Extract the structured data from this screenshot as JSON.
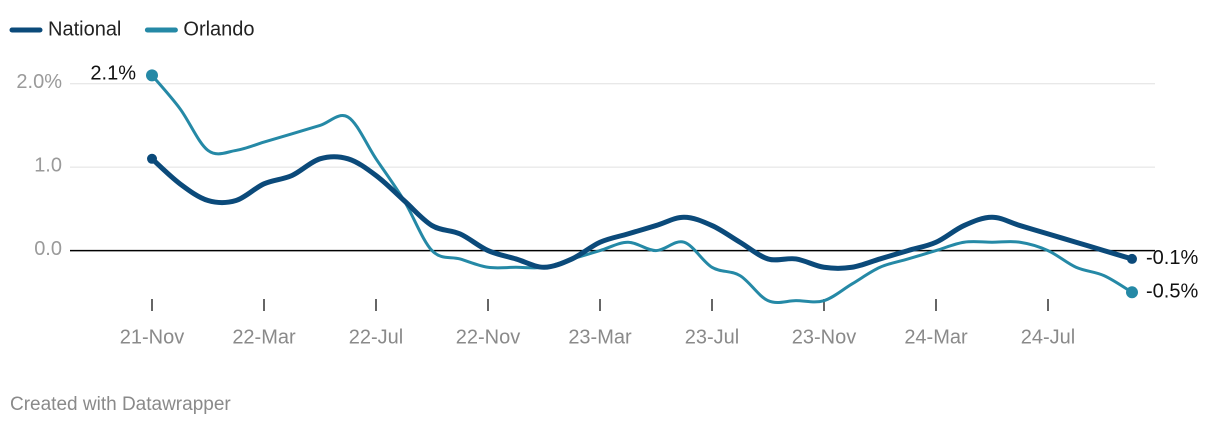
{
  "chart_data": {
    "type": "line",
    "categories": [
      "21-Nov",
      null,
      null,
      null,
      "22-Mar",
      null,
      null,
      null,
      "22-Jul",
      null,
      null,
      null,
      "22-Nov",
      null,
      null,
      null,
      "23-Mar",
      null,
      null,
      null,
      "23-Jul",
      null,
      null,
      null,
      "23-Nov",
      null,
      null,
      null,
      "24-Mar",
      null,
      null,
      null,
      "24-Jul",
      null,
      null,
      null
    ],
    "series": [
      {
        "name": "National",
        "color": "#0b4a7a",
        "values": [
          1.1,
          0.8,
          0.6,
          0.6,
          0.8,
          0.9,
          1.1,
          1.1,
          0.9,
          0.6,
          0.3,
          0.2,
          0.0,
          -0.1,
          -0.2,
          -0.1,
          0.1,
          0.2,
          0.3,
          0.4,
          0.3,
          0.1,
          -0.1,
          -0.1,
          -0.2,
          -0.2,
          -0.1,
          0.0,
          0.1,
          0.3,
          0.4,
          0.3,
          0.2,
          0.1,
          0.0,
          -0.1
        ],
        "value_labels": [
          null,
          null,
          null,
          null,
          null,
          null,
          null,
          null,
          null,
          null,
          null,
          null,
          null,
          null,
          null,
          null,
          null,
          null,
          null,
          null,
          null,
          null,
          null,
          null,
          null,
          null,
          null,
          null,
          null,
          null,
          null,
          null,
          null,
          null,
          null,
          "-0.1%"
        ]
      },
      {
        "name": "Orlando",
        "color": "#2589a6",
        "values": [
          2.1,
          1.7,
          1.2,
          1.2,
          1.3,
          1.4,
          1.5,
          1.6,
          1.1,
          0.6,
          0.0,
          -0.1,
          -0.2,
          -0.2,
          -0.2,
          -0.1,
          0.0,
          0.1,
          0.0,
          0.1,
          -0.2,
          -0.3,
          -0.6,
          -0.6,
          -0.6,
          -0.4,
          -0.2,
          -0.1,
          0.0,
          0.1,
          0.1,
          0.1,
          0.0,
          -0.2,
          -0.3,
          -0.5
        ],
        "value_labels": [
          "2.1%",
          null,
          null,
          null,
          null,
          null,
          null,
          null,
          null,
          null,
          null,
          null,
          null,
          null,
          null,
          null,
          null,
          null,
          null,
          null,
          null,
          null,
          null,
          null,
          null,
          null,
          null,
          null,
          null,
          null,
          null,
          null,
          null,
          null,
          null,
          "-0.5%"
        ]
      }
    ],
    "ylim": [
      -0.7,
      2.2
    ],
    "yticks": [
      {
        "value": 0,
        "label": "0.0"
      },
      {
        "value": 1,
        "label": "1.0"
      },
      {
        "value": 2,
        "label": "2.0%"
      }
    ],
    "grid": true,
    "legend": "top-left",
    "source": "Created with Datawrapper"
  }
}
